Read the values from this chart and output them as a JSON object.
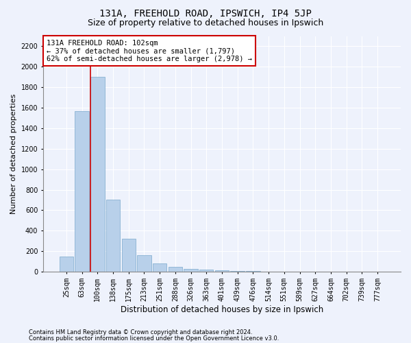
{
  "title": "131A, FREEHOLD ROAD, IPSWICH, IP4 5JP",
  "subtitle": "Size of property relative to detached houses in Ipswich",
  "xlabel": "Distribution of detached houses by size in Ipswich",
  "ylabel": "Number of detached properties",
  "categories": [
    "25sqm",
    "63sqm",
    "100sqm",
    "138sqm",
    "175sqm",
    "213sqm",
    "251sqm",
    "288sqm",
    "326sqm",
    "363sqm",
    "401sqm",
    "439sqm",
    "476sqm",
    "514sqm",
    "551sqm",
    "589sqm",
    "627sqm",
    "664sqm",
    "702sqm",
    "739sqm",
    "777sqm"
  ],
  "values": [
    150,
    1570,
    1900,
    700,
    325,
    160,
    80,
    45,
    25,
    20,
    15,
    8,
    5,
    3,
    2,
    2,
    1,
    1,
    1,
    1,
    0
  ],
  "bar_color": "#b8d0ea",
  "bar_edge_color": "#7aa8cc",
  "vline_color": "#cc0000",
  "annotation_text": "131A FREEHOLD ROAD: 102sqm\n← 37% of detached houses are smaller (1,797)\n62% of semi-detached houses are larger (2,978) →",
  "annotation_box_color": "white",
  "annotation_box_edge_color": "#cc0000",
  "ylim": [
    0,
    2300
  ],
  "yticks": [
    0,
    200,
    400,
    600,
    800,
    1000,
    1200,
    1400,
    1600,
    1800,
    2000,
    2200
  ],
  "footer_line1": "Contains HM Land Registry data © Crown copyright and database right 2024.",
  "footer_line2": "Contains public sector information licensed under the Open Government Licence v3.0.",
  "background_color": "#eef2fc",
  "grid_color": "#ffffff",
  "title_fontsize": 10,
  "subtitle_fontsize": 9,
  "tick_fontsize": 7,
  "ylabel_fontsize": 8,
  "xlabel_fontsize": 8.5,
  "annotation_fontsize": 7.5,
  "footer_fontsize": 6
}
